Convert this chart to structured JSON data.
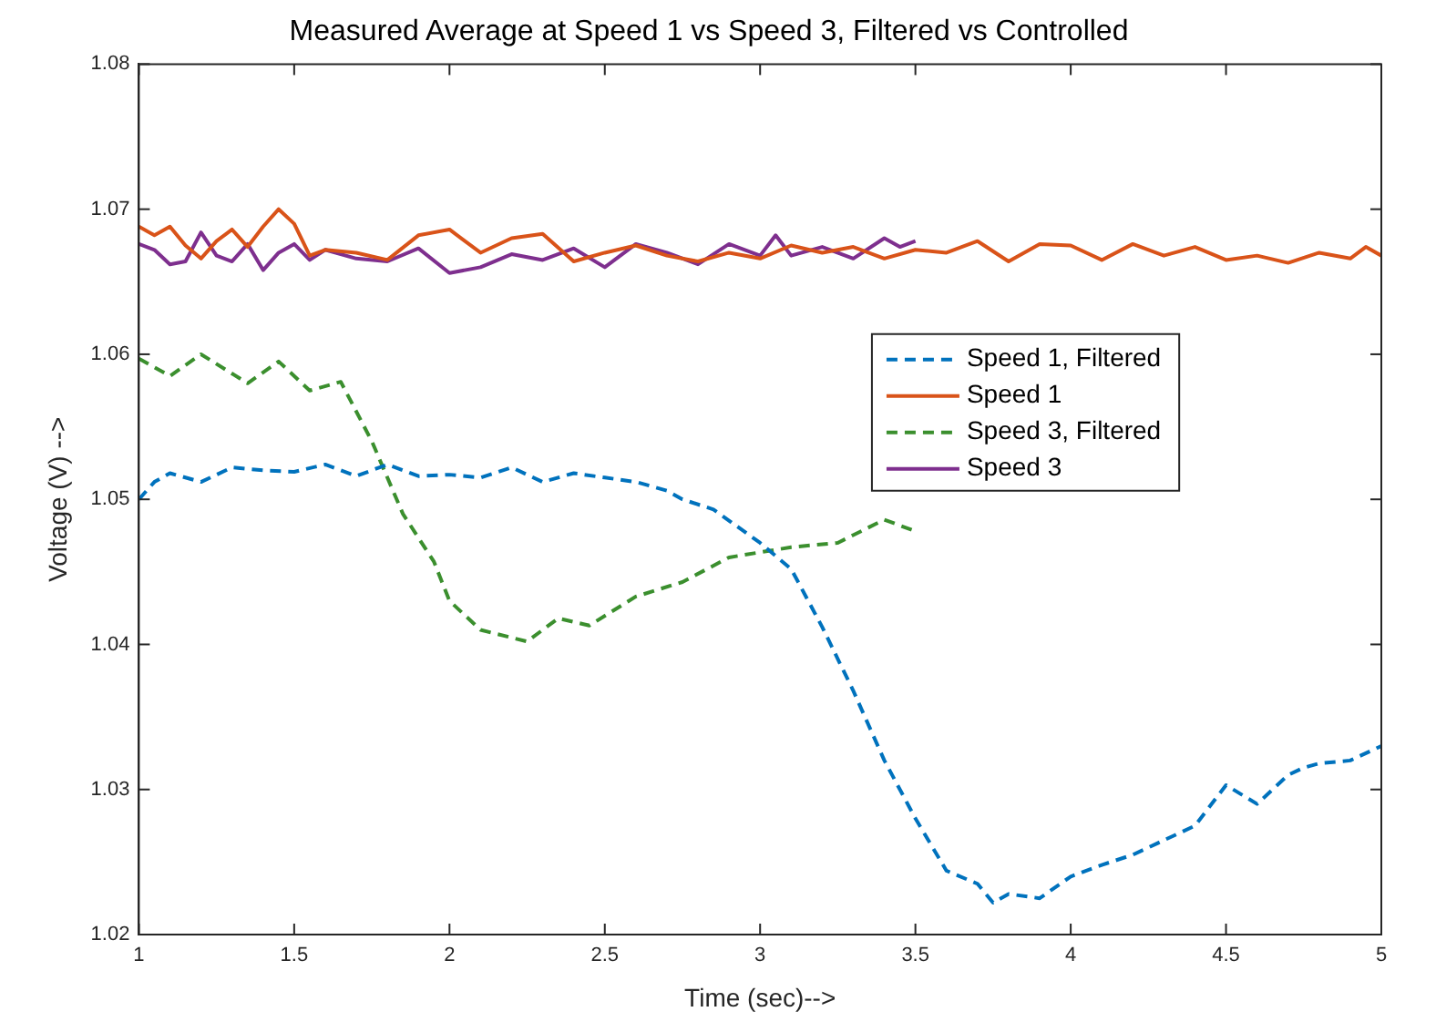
{
  "chart_data": {
    "type": "line",
    "title": "Measured Average at Speed 1 vs Speed 3, Filtered vs Controlled",
    "xlabel": "Time (sec)-->",
    "ylabel": "Voltage (V) -->",
    "xlim": [
      1,
      5
    ],
    "xticks": [
      1,
      1.5,
      2,
      2.5,
      3,
      3.5,
      4,
      4.5,
      5
    ],
    "ylim": [
      1.02,
      1.08
    ],
    "yticks": [
      1.02,
      1.03,
      1.04,
      1.05,
      1.06,
      1.07,
      1.08
    ],
    "grid": false,
    "legend": "right",
    "marker": "none",
    "series": [
      {
        "name": "Speed 1, Filtered",
        "color": "#0072bd",
        "line_style": "dashed",
        "x": [
          1,
          1.05,
          1.1,
          1.2,
          1.3,
          1.4,
          1.5,
          1.6,
          1.7,
          1.8,
          1.9,
          2,
          2.1,
          2.2,
          2.3,
          2.4,
          2.5,
          2.6,
          2.7,
          2.75,
          2.85,
          3,
          3.1,
          3.2,
          3.3,
          3.4,
          3.5,
          3.6,
          3.7,
          3.75,
          3.8,
          3.9,
          4,
          4.1,
          4.2,
          4.3,
          4.4,
          4.5,
          4.6,
          4.7,
          4.75,
          4.8,
          4.9,
          5
        ],
        "values": [
          1.05,
          1.0512,
          1.0518,
          1.0512,
          1.0522,
          1.052,
          1.0519,
          1.0524,
          1.0516,
          1.0524,
          1.0516,
          1.0517,
          1.0515,
          1.0522,
          1.0512,
          1.0518,
          1.0515,
          1.0512,
          1.0506,
          1.05,
          1.0493,
          1.047,
          1.0452,
          1.0412,
          1.0368,
          1.032,
          1.028,
          1.0244,
          1.0235,
          1.0222,
          1.0228,
          1.0225,
          1.024,
          1.0248,
          1.0255,
          1.0265,
          1.0275,
          1.0303,
          1.029,
          1.031,
          1.0315,
          1.0318,
          1.032,
          1.033
        ]
      },
      {
        "name": "Speed 1",
        "color": "#d95319",
        "line_style": "solid",
        "x": [
          1,
          1.05,
          1.1,
          1.15,
          1.2,
          1.25,
          1.3,
          1.35,
          1.4,
          1.45,
          1.5,
          1.55,
          1.6,
          1.7,
          1.8,
          1.9,
          2,
          2.1,
          2.2,
          2.3,
          2.4,
          2.5,
          2.6,
          2.7,
          2.8,
          2.9,
          3,
          3.1,
          3.2,
          3.3,
          3.4,
          3.5,
          3.6,
          3.7,
          3.8,
          3.9,
          4,
          4.1,
          4.2,
          4.3,
          4.4,
          4.5,
          4.6,
          4.7,
          4.8,
          4.9,
          4.95,
          5
        ],
        "values": [
          1.0688,
          1.0682,
          1.0688,
          1.0675,
          1.0666,
          1.0678,
          1.0686,
          1.0674,
          1.0688,
          1.07,
          1.069,
          1.0668,
          1.0672,
          1.067,
          1.0665,
          1.0682,
          1.0686,
          1.067,
          1.068,
          1.0683,
          1.0664,
          1.067,
          1.0675,
          1.0668,
          1.0664,
          1.067,
          1.0666,
          1.0675,
          1.067,
          1.0674,
          1.0666,
          1.0672,
          1.067,
          1.0678,
          1.0664,
          1.0676,
          1.0675,
          1.0665,
          1.0676,
          1.0668,
          1.0674,
          1.0665,
          1.0668,
          1.0663,
          1.067,
          1.0666,
          1.0674,
          1.0668
        ]
      },
      {
        "name": "Speed 3, Filtered",
        "color": "#3b8f2e",
        "line_style": "dashed",
        "x": [
          1,
          1.1,
          1.2,
          1.35,
          1.45,
          1.55,
          1.65,
          1.75,
          1.85,
          1.95,
          2,
          2.1,
          2.25,
          2.35,
          2.45,
          2.6,
          2.75,
          2.9,
          3.1,
          3.25,
          3.4,
          3.5
        ],
        "values": [
          1.0597,
          1.0585,
          1.06,
          1.058,
          1.0595,
          1.0575,
          1.0581,
          1.054,
          1.049,
          1.0457,
          1.043,
          1.041,
          1.0402,
          1.0418,
          1.0413,
          1.0433,
          1.0443,
          1.046,
          1.0467,
          1.047,
          1.0486,
          1.0478
        ]
      },
      {
        "name": "Speed 3",
        "color": "#7e2f8e",
        "line_style": "solid",
        "x": [
          1,
          1.05,
          1.1,
          1.15,
          1.2,
          1.25,
          1.3,
          1.35,
          1.4,
          1.45,
          1.5,
          1.55,
          1.6,
          1.7,
          1.8,
          1.9,
          2,
          2.1,
          2.2,
          2.3,
          2.4,
          2.5,
          2.6,
          2.7,
          2.8,
          2.9,
          3,
          3.05,
          3.1,
          3.2,
          3.3,
          3.4,
          3.45,
          3.5
        ],
        "values": [
          1.0676,
          1.0672,
          1.0662,
          1.0664,
          1.0684,
          1.0668,
          1.0664,
          1.0676,
          1.0658,
          1.067,
          1.0676,
          1.0665,
          1.0672,
          1.0666,
          1.0664,
          1.0673,
          1.0656,
          1.066,
          1.0669,
          1.0665,
          1.0673,
          1.066,
          1.0676,
          1.067,
          1.0662,
          1.0676,
          1.0668,
          1.0682,
          1.0668,
          1.0674,
          1.0666,
          1.068,
          1.0674,
          1.0678
        ]
      }
    ]
  }
}
